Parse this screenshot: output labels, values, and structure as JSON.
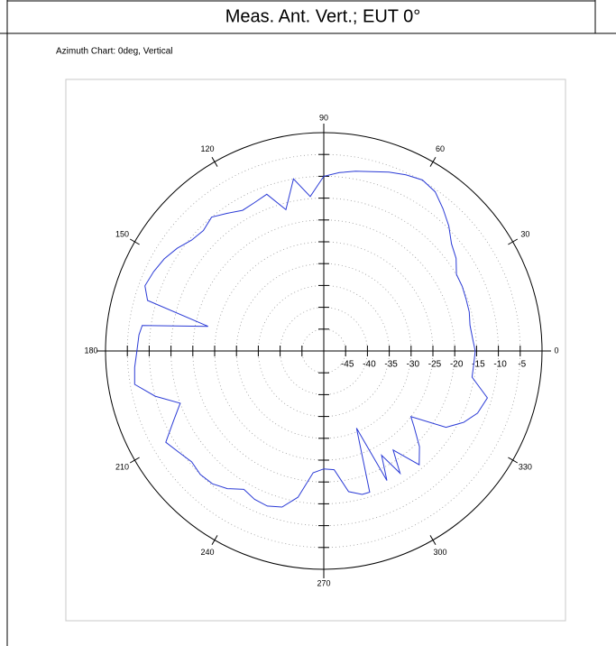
{
  "header": {
    "title": "Meas. Ant. Vert.; EUT 0°"
  },
  "chart_data": {
    "type": "polar",
    "title": "Azimuth Chart: 0deg, Vertical",
    "color": "#2b3bd6",
    "theta": [
      0,
      5,
      10,
      15,
      20,
      25,
      30,
      35,
      40,
      45,
      50,
      55,
      60,
      65,
      70,
      75,
      80,
      85,
      90,
      95,
      100,
      105,
      110,
      115,
      120,
      125,
      130,
      135,
      140,
      145,
      150,
      155,
      160,
      164,
      168,
      172,
      175,
      180,
      185,
      190,
      195,
      200,
      205,
      210,
      215,
      220,
      225,
      230,
      235,
      240,
      245,
      250,
      255,
      260,
      265,
      270,
      275,
      280,
      285,
      288,
      293,
      296,
      299,
      302,
      305,
      310,
      315,
      320,
      323,
      328,
      333,
      338,
      344,
      350,
      355
    ],
    "values": [
      -15.3,
      -15.8,
      -16,
      -15.5,
      -15.3,
      -15,
      -14.9,
      -13,
      -11.8,
      -9.5,
      -7.5,
      -5.5,
      -4.8,
      -5.5,
      -6.4,
      -7.5,
      -8.2,
      -9,
      -10,
      -14.5,
      -10,
      -16.5,
      -11.8,
      -12.5,
      -12.8,
      -11.5,
      -10,
      -11,
      -10.5,
      -9,
      -7.8,
      -7,
      -6.4,
      -8,
      -22.9,
      -8,
      -7.5,
      -7.2,
      -6.5,
      -6,
      -10,
      -15,
      -12,
      -8.2,
      -9.5,
      -10.5,
      -10,
      -10.3,
      -11.5,
      -13.4,
      -12.5,
      -12.2,
      -13,
      -16,
      -22,
      -23,
      -22.7,
      -17.3,
      -16,
      -16,
      -30.8,
      -17,
      -22.7,
      -17,
      -22.3,
      -16,
      -19,
      -23,
      -25,
      -17,
      -14,
      -12,
      -11,
      -15.5,
      -15.5
    ],
    "rlim": [
      -50,
      0
    ],
    "rticks": [
      -45,
      -40,
      -35,
      -30,
      -25,
      -20,
      -15,
      -10,
      -5
    ],
    "thetaticks": [
      0,
      30,
      60,
      90,
      120,
      150,
      180,
      210,
      240,
      270,
      300,
      330
    ],
    "grid": true
  }
}
